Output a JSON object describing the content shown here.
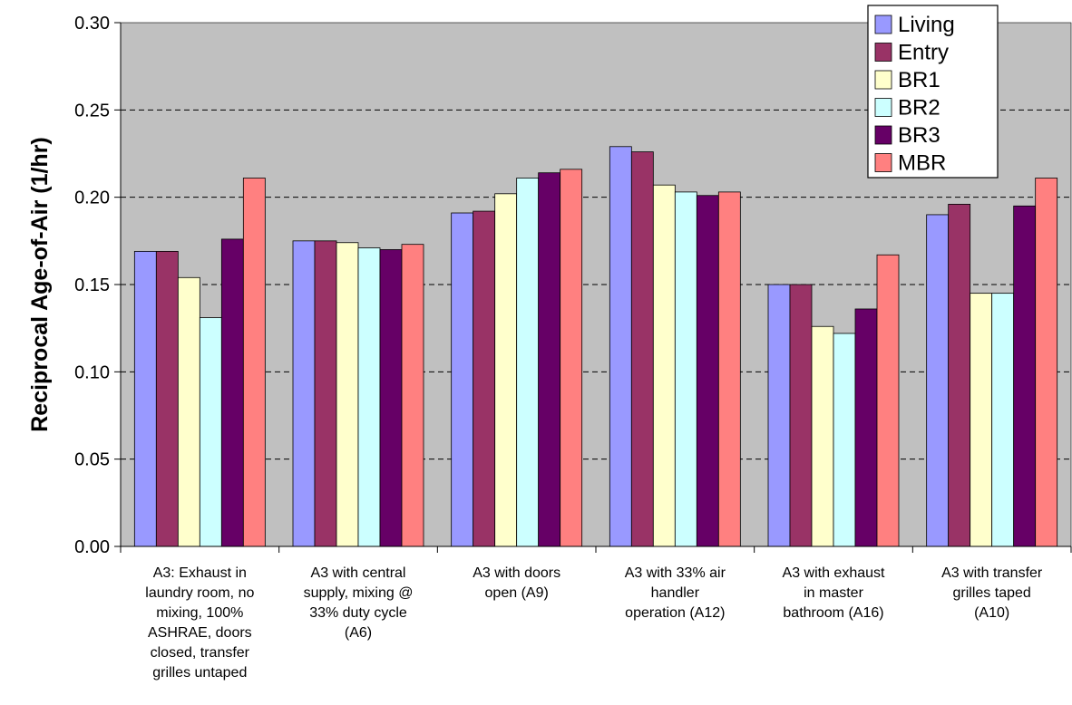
{
  "chart_data": {
    "type": "bar",
    "title": "",
    "xlabel": "",
    "ylabel": "Reciprocal Age-of-Air (1/hr)",
    "ylim": [
      0,
      0.3
    ],
    "yticks": [
      "0.00",
      "0.05",
      "0.10",
      "0.15",
      "0.20",
      "0.25",
      "0.30"
    ],
    "grid": true,
    "legend_position": "top-right",
    "plot_background": "#c0c0c0",
    "categories": [
      [
        "A3: Exhaust in",
        "laundry room, no",
        "mixing, 100%",
        "ASHRAE, doors",
        "closed, transfer",
        "grilles untaped"
      ],
      [
        "A3 with central",
        "supply, mixing @",
        "33% duty cycle",
        "(A6)"
      ],
      [
        "A3 with doors",
        "open (A9)"
      ],
      [
        "A3 with 33% air",
        "handler",
        "operation (A12)"
      ],
      [
        "A3 with exhaust",
        "in master",
        "bathroom (A16)"
      ],
      [
        "A3 with transfer",
        "grilles taped",
        "(A10)"
      ]
    ],
    "series": [
      {
        "name": "Living",
        "color": "#9999ff",
        "values": [
          0.169,
          0.175,
          0.191,
          0.229,
          0.15,
          0.19
        ]
      },
      {
        "name": "Entry",
        "color": "#993366",
        "values": [
          0.169,
          0.175,
          0.192,
          0.226,
          0.15,
          0.196
        ]
      },
      {
        "name": "BR1",
        "color": "#ffffcc",
        "values": [
          0.154,
          0.174,
          0.202,
          0.207,
          0.126,
          0.145
        ]
      },
      {
        "name": "BR2",
        "color": "#ccffff",
        "values": [
          0.131,
          0.171,
          0.211,
          0.203,
          0.122,
          0.145
        ]
      },
      {
        "name": "BR3",
        "color": "#660066",
        "values": [
          0.176,
          0.17,
          0.214,
          0.201,
          0.136,
          0.195
        ]
      },
      {
        "name": "MBR",
        "color": "#ff8080",
        "values": [
          0.211,
          0.173,
          0.216,
          0.203,
          0.167,
          0.211
        ]
      }
    ]
  }
}
